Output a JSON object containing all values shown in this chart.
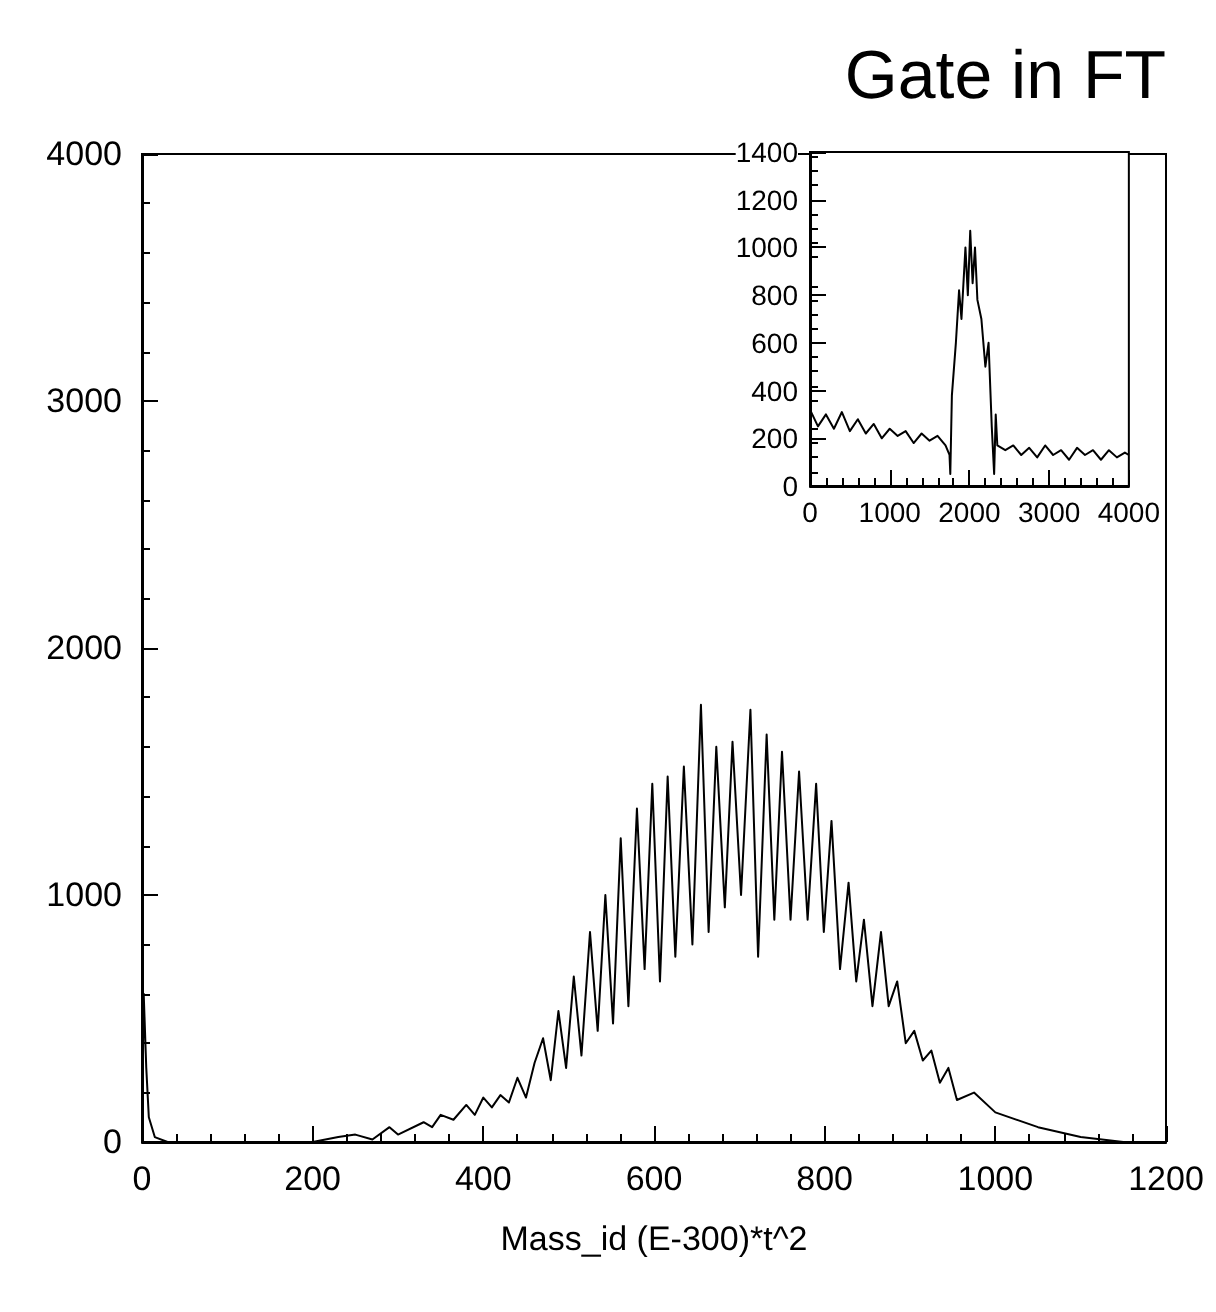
{
  "chart_data": [
    {
      "type": "line",
      "title": "Gate in FT",
      "xlabel": "Mass_id (E-300)*t^2",
      "color": "#000000",
      "x": [
        0,
        2,
        5,
        8,
        15,
        30,
        100,
        200,
        230,
        250,
        270,
        290,
        300,
        330,
        340,
        350,
        365,
        380,
        390,
        400,
        410,
        420,
        430,
        440,
        450,
        460,
        470,
        479,
        488,
        497,
        506,
        515,
        525,
        534,
        543,
        552,
        561,
        570,
        580,
        589,
        598,
        607,
        616,
        625,
        635,
        645,
        655,
        664,
        673,
        683,
        692,
        702,
        713,
        722,
        732,
        741,
        750,
        760,
        770,
        780,
        790,
        799,
        808,
        818,
        828,
        837,
        846,
        856,
        866,
        875,
        885,
        895,
        905,
        915,
        925,
        935,
        945,
        955,
        975,
        1000,
        1050,
        1100,
        1150,
        1200
      ],
      "values": [
        0,
        600,
        300,
        100,
        20,
        0,
        0,
        0,
        20,
        30,
        10,
        60,
        30,
        80,
        60,
        110,
        90,
        150,
        110,
        180,
        140,
        190,
        160,
        260,
        180,
        320,
        420,
        250,
        530,
        300,
        670,
        350,
        850,
        450,
        1000,
        480,
        1230,
        550,
        1350,
        700,
        1450,
        650,
        1480,
        750,
        1520,
        800,
        1770,
        850,
        1600,
        950,
        1620,
        1000,
        1750,
        750,
        1650,
        900,
        1580,
        900,
        1500,
        900,
        1450,
        850,
        1300,
        700,
        1050,
        650,
        900,
        550,
        850,
        550,
        650,
        400,
        450,
        330,
        370,
        240,
        300,
        170,
        200,
        120,
        60,
        20,
        0,
        0
      ],
      "xlim": [
        0,
        1200
      ],
      "xticks": [
        0,
        200,
        400,
        600,
        800,
        1000,
        1200
      ],
      "ylim": [
        0,
        4000
      ],
      "yticks": [
        0,
        1000,
        2000,
        3000,
        4000
      ],
      "grid": false,
      "marker": "none",
      "line_style": "solid"
    },
    {
      "type": "line",
      "color": "#000000",
      "x": [
        0,
        100,
        200,
        300,
        400,
        500,
        600,
        700,
        800,
        900,
        1000,
        1100,
        1200,
        1300,
        1400,
        1500,
        1600,
        1700,
        1750,
        1760,
        1780,
        1830,
        1870,
        1900,
        1950,
        1980,
        2010,
        2040,
        2070,
        2100,
        2150,
        2200,
        2240,
        2280,
        2310,
        2330,
        2350,
        2450,
        2550,
        2650,
        2750,
        2850,
        2950,
        3050,
        3150,
        3250,
        3350,
        3450,
        3550,
        3650,
        3750,
        3850,
        3950,
        4000
      ],
      "values": [
        320,
        250,
        300,
        240,
        310,
        230,
        280,
        220,
        260,
        200,
        240,
        210,
        230,
        180,
        220,
        190,
        210,
        170,
        130,
        50,
        380,
        600,
        820,
        700,
        1000,
        800,
        1070,
        850,
        1000,
        780,
        700,
        500,
        600,
        250,
        50,
        300,
        170,
        150,
        170,
        130,
        160,
        120,
        170,
        130,
        150,
        110,
        160,
        130,
        150,
        110,
        150,
        120,
        140,
        130
      ],
      "xlim": [
        0,
        4000
      ],
      "xticks": [
        0,
        1000,
        2000,
        3000,
        4000
      ],
      "ylim": [
        0,
        1400
      ],
      "yticks": [
        0,
        200,
        400,
        600,
        800,
        1000,
        1200,
        1400
      ],
      "grid": false,
      "marker": "none",
      "line_style": "solid"
    }
  ]
}
